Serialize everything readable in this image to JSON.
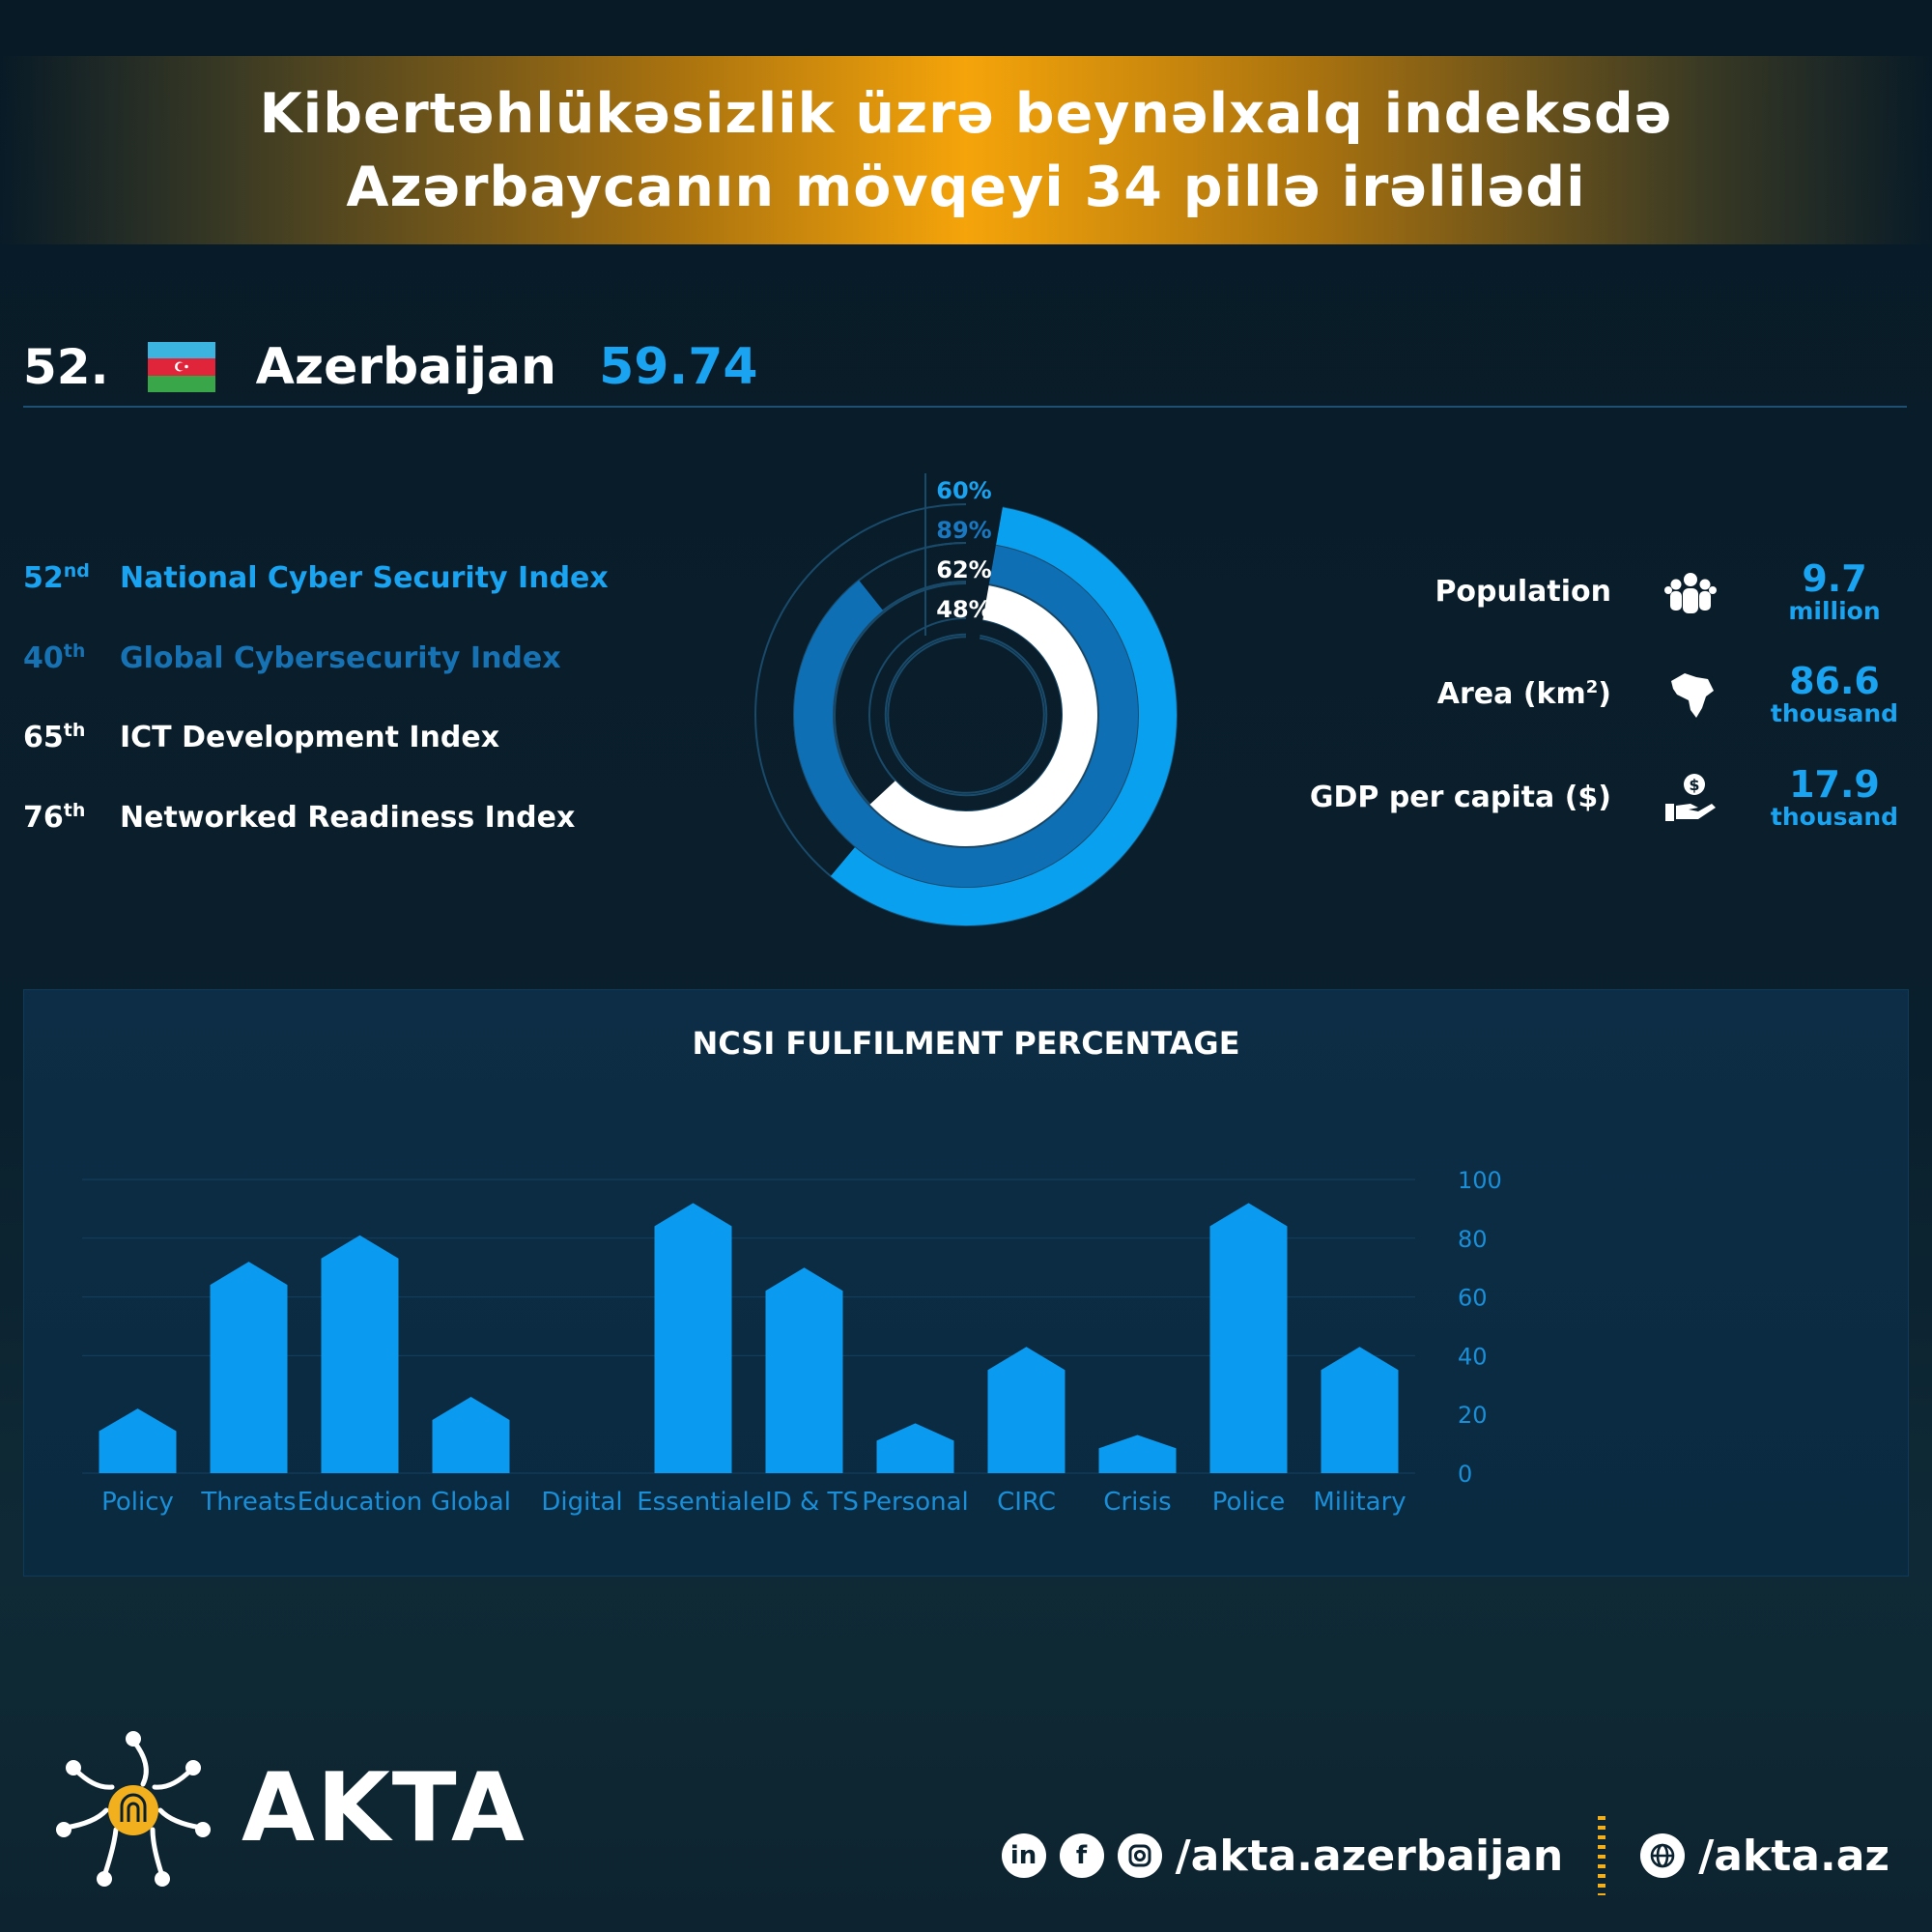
{
  "banner": {
    "line1": "Kibertəhlükəsizlik üzrə beynəlxalq indeksdə",
    "line2": "Azərbaycanın mövqeyi 34 pillə irəlilədi"
  },
  "country": {
    "rank": "52.",
    "name": "Azerbaijan",
    "score": "59.74"
  },
  "indices": [
    {
      "ord": "52",
      "suffix": "nd",
      "name": "National Cyber Security Index",
      "color": "#1aa3f0"
    },
    {
      "ord": "40",
      "suffix": "th",
      "name": "Global Cybersecurity Index",
      "color": "#1772b4"
    },
    {
      "ord": "65",
      "suffix": "th",
      "name": "ICT Development Index",
      "color": "#ffffff"
    },
    {
      "ord": "76",
      "suffix": "th",
      "name": "Networked Readiness Index",
      "color": "#ffffff"
    }
  ],
  "rings": [
    {
      "label": "60%",
      "value": 60,
      "color": "#0aa0f0"
    },
    {
      "label": "89%",
      "value": 89,
      "color": "#0f6fb5"
    },
    {
      "label": "62%",
      "value": 62,
      "color": "#ffffff"
    },
    {
      "label": "48%",
      "value": 48,
      "color": "#ffffff"
    }
  ],
  "stats": [
    {
      "label": "Population",
      "value": "9.7",
      "unit": "million",
      "icon": "people-icon"
    },
    {
      "label": "Area (km",
      "sup": "2",
      "label_end": ")",
      "value": "86.6",
      "unit": "thousand",
      "icon": "map-icon"
    },
    {
      "label": "GDP per capita ($)",
      "value": "17.9",
      "unit": "thousand",
      "icon": "money-hand-icon"
    }
  ],
  "chart_data": {
    "type": "bar",
    "title": "NCSI FULFILMENT PERCENTAGE",
    "categories": [
      "Policy",
      "Threats",
      "Education",
      "Global",
      "Digital",
      "Essential",
      "eID & TS",
      "Personal",
      "CIRC",
      "Crisis",
      "Police",
      "Military"
    ],
    "values": [
      22,
      72,
      81,
      26,
      0,
      92,
      70,
      17,
      43,
      13,
      92,
      43
    ],
    "ylim": [
      0,
      100
    ],
    "yticks": [
      "100",
      "80",
      "60",
      "40",
      "20",
      "0"
    ],
    "bar_color": "#0a9af0",
    "grid": true
  },
  "footer": {
    "brand": "AKTA",
    "social_handle": "/akta.azerbaijan",
    "web_handle": "/akta.az",
    "icons": [
      "in",
      "f"
    ]
  }
}
